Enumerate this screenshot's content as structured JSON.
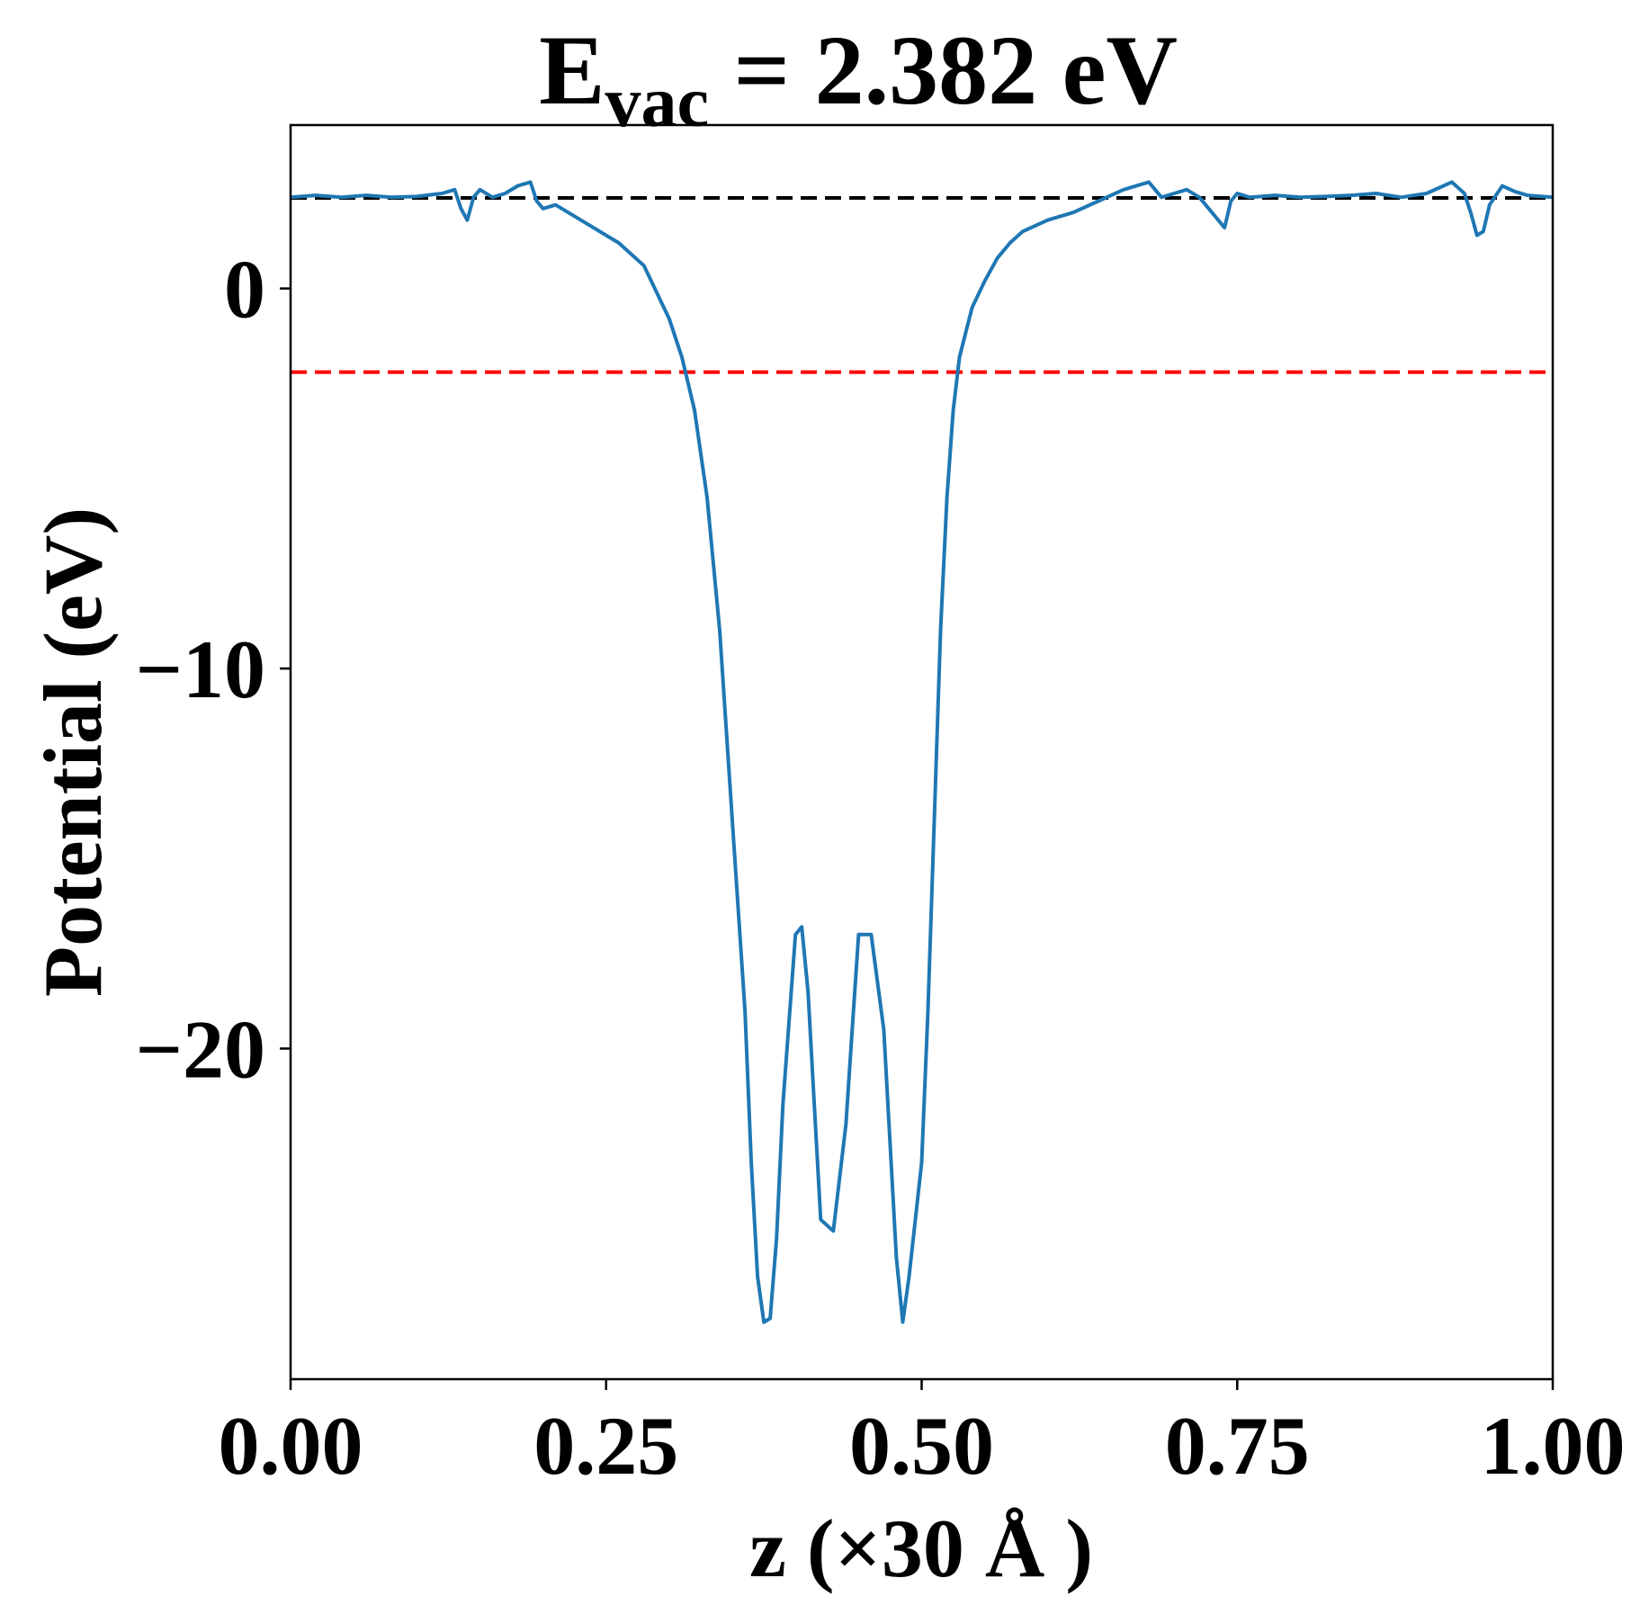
{
  "chart_data": {
    "type": "line",
    "title": {
      "prefix": "E",
      "subscript": "vac",
      "suffix": " = 2.382 eV"
    },
    "xlabel": "z (×30 Å )",
    "ylabel": "Potential (eV)",
    "xlim": [
      0.0,
      1.0
    ],
    "ylim": [
      -28.7,
      4.3
    ],
    "xticks": [
      0.0,
      0.25,
      0.5,
      0.75,
      1.0
    ],
    "xtick_labels": [
      "0.00",
      "0.25",
      "0.50",
      "0.75",
      "1.00"
    ],
    "yticks": [
      0,
      -10,
      -20
    ],
    "ytick_labels": [
      "0",
      "−10",
      "−20"
    ],
    "grid": false,
    "series": [
      {
        "color": "#1f77b4",
        "x": [
          0.0,
          0.02,
          0.04,
          0.06,
          0.08,
          0.1,
          0.12,
          0.13,
          0.135,
          0.14,
          0.145,
          0.15,
          0.16,
          0.17,
          0.18,
          0.19,
          0.195,
          0.2,
          0.21,
          0.22,
          0.24,
          0.26,
          0.28,
          0.3,
          0.31,
          0.32,
          0.33,
          0.34,
          0.35,
          0.36,
          0.365,
          0.37,
          0.375,
          0.38,
          0.385,
          0.39,
          0.4,
          0.405,
          0.41,
          0.415,
          0.42,
          0.43,
          0.44,
          0.445,
          0.45,
          0.46,
          0.47,
          0.475,
          0.48,
          0.485,
          0.49,
          0.5,
          0.505,
          0.51,
          0.515,
          0.52,
          0.525,
          0.53,
          0.54,
          0.55,
          0.56,
          0.57,
          0.58,
          0.6,
          0.62,
          0.64,
          0.66,
          0.68,
          0.69,
          0.7,
          0.71,
          0.72,
          0.73,
          0.74,
          0.745,
          0.75,
          0.76,
          0.78,
          0.8,
          0.82,
          0.84,
          0.86,
          0.88,
          0.9,
          0.92,
          0.93,
          0.935,
          0.94,
          0.945,
          0.95,
          0.96,
          0.97,
          0.98,
          1.0
        ],
        "y": [
          2.4,
          2.45,
          2.4,
          2.45,
          2.4,
          2.42,
          2.5,
          2.6,
          2.1,
          1.8,
          2.4,
          2.6,
          2.4,
          2.5,
          2.7,
          2.8,
          2.3,
          2.1,
          2.2,
          2.0,
          1.6,
          1.2,
          0.6,
          -0.8,
          -1.8,
          -3.2,
          -5.5,
          -9.0,
          -14.0,
          -19.0,
          -23.0,
          -26.0,
          -27.2,
          -27.1,
          -25.0,
          -21.5,
          -17.0,
          -16.8,
          -18.5,
          -21.5,
          -24.5,
          -24.8,
          -22.0,
          -19.5,
          -17.0,
          -17.0,
          -19.5,
          -22.5,
          -25.5,
          -27.2,
          -26.0,
          -23.0,
          -19.0,
          -14.0,
          -9.0,
          -5.5,
          -3.2,
          -1.8,
          -0.5,
          0.2,
          0.8,
          1.2,
          1.5,
          1.8,
          2.0,
          2.3,
          2.6,
          2.8,
          2.4,
          2.5,
          2.6,
          2.4,
          2.0,
          1.6,
          2.3,
          2.5,
          2.4,
          2.45,
          2.4,
          2.42,
          2.45,
          2.5,
          2.4,
          2.5,
          2.8,
          2.5,
          2.0,
          1.4,
          1.5,
          2.2,
          2.7,
          2.55,
          2.45,
          2.4
        ]
      }
    ],
    "reference_lines": [
      {
        "y": 2.382,
        "color": "#000000",
        "style": "dashed"
      },
      {
        "y": -2.2,
        "color": "#ff0000",
        "style": "dashed"
      }
    ]
  }
}
